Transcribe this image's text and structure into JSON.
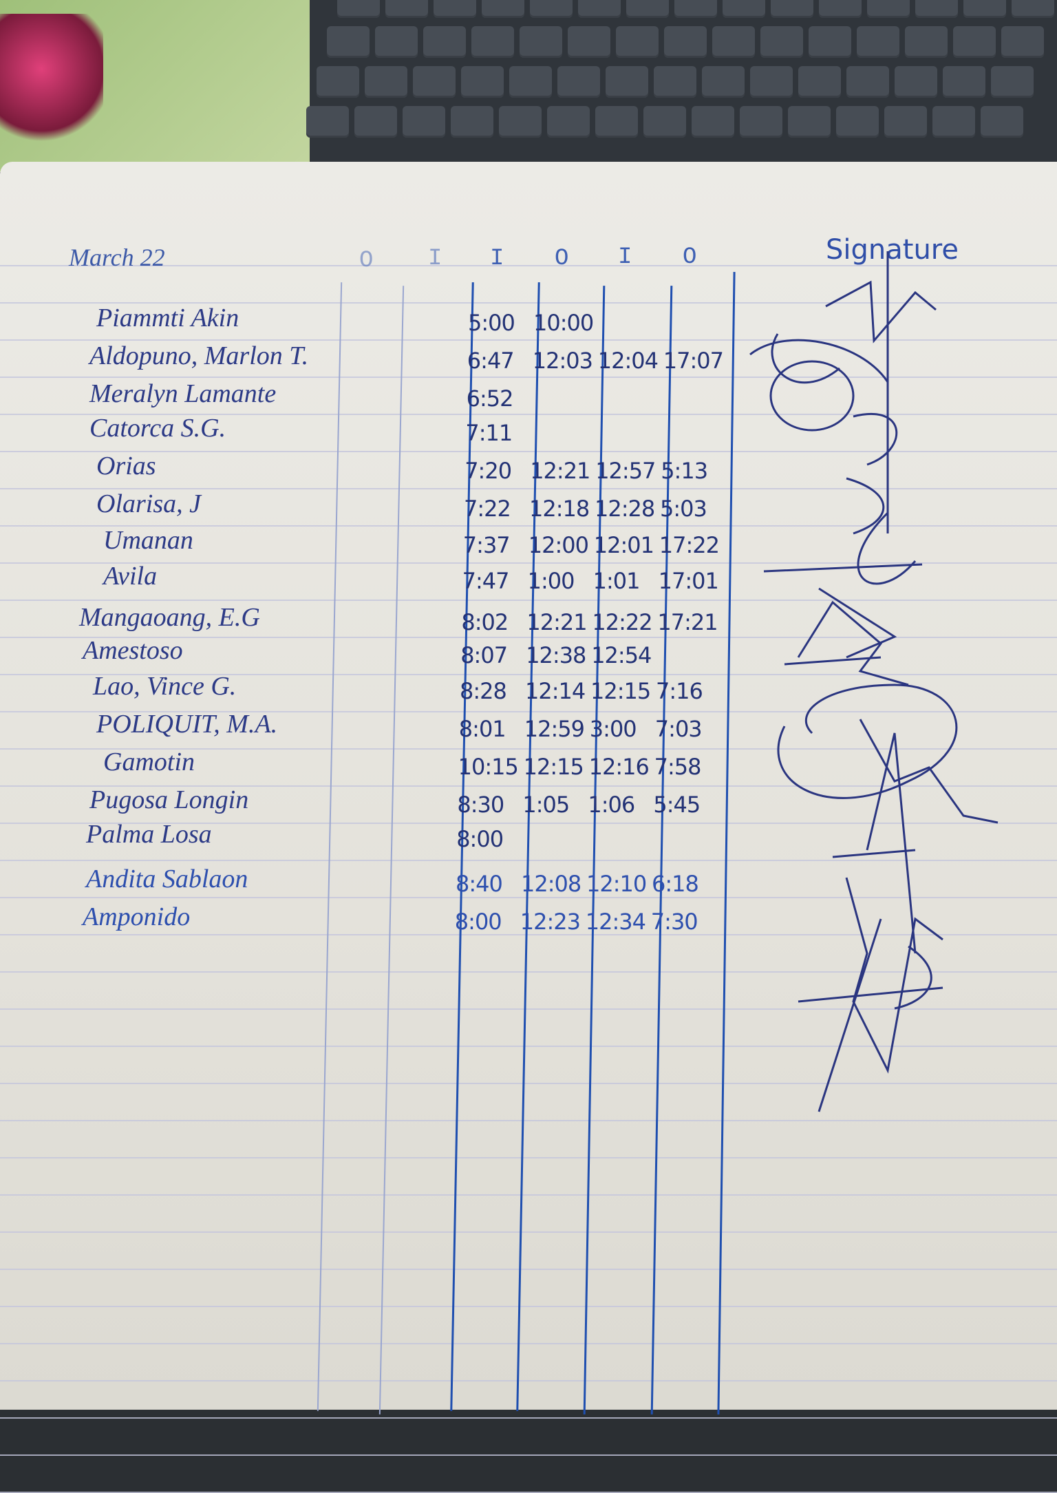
{
  "sheet": {
    "date": "March 22",
    "columns": [
      "O",
      "I",
      "I",
      "O",
      "I",
      "O"
    ],
    "signature_header": "Signature",
    "rows": [
      {
        "name": "Piammti Akin",
        "in_am": "5:00",
        "out_am": "10:00",
        "in_pm": "",
        "out_pm": ""
      },
      {
        "name": "Aldopuno, Marlon T.",
        "in_am": "6:47",
        "out_am": "12:03",
        "in_pm": "12:04",
        "out_pm": "17:07"
      },
      {
        "name": "Meralyn Lamante",
        "in_am": "6:52",
        "out_am": "",
        "in_pm": "",
        "out_pm": ""
      },
      {
        "name": "Catorca S.G.",
        "in_am": "7:11",
        "out_am": "",
        "in_pm": "",
        "out_pm": ""
      },
      {
        "name": "Orias",
        "in_am": "7:20",
        "out_am": "12:21",
        "in_pm": "12:57",
        "out_pm": "5:13"
      },
      {
        "name": "Olarisa, J",
        "in_am": "7:22",
        "out_am": "12:18",
        "in_pm": "12:28",
        "out_pm": "5:03"
      },
      {
        "name": "Umanan",
        "in_am": "7:37",
        "out_am": "12:00",
        "in_pm": "12:01",
        "out_pm": "17:22"
      },
      {
        "name": "Avila",
        "in_am": "7:47",
        "out_am": "1:00",
        "in_pm": "1:01",
        "out_pm": "17:01"
      },
      {
        "name": "Mangaoang, E.G",
        "in_am": "8:02",
        "out_am": "12:21",
        "in_pm": "12:22",
        "out_pm": "17:21"
      },
      {
        "name": "Amestoso",
        "in_am": "8:07",
        "out_am": "12:38",
        "in_pm": "12:54",
        "out_pm": ""
      },
      {
        "name": "Lao, Vince G.",
        "in_am": "8:28",
        "out_am": "12:14",
        "in_pm": "12:15",
        "out_pm": "7:16"
      },
      {
        "name": "POLIQUIT, M.A.",
        "in_am": "8:01",
        "out_am": "12:59",
        "in_pm": "3:00",
        "out_pm": "7:03"
      },
      {
        "name": "Gamotin",
        "in_am": "10:15",
        "out_am": "12:15",
        "in_pm": "12:16",
        "out_pm": "7:58"
      },
      {
        "name": "Pugosa Longin",
        "in_am": "8:30",
        "out_am": "1:05",
        "in_pm": "1:06",
        "out_pm": "5:45"
      },
      {
        "name": "Palma Losa",
        "in_am": "8:00",
        "out_am": "",
        "in_pm": "",
        "out_pm": ""
      },
      {
        "name": "Andita Sablaon",
        "in_am": "8:40",
        "out_am": "12:08",
        "in_pm": "12:10",
        "out_pm": "6:18"
      },
      {
        "name": "Amponido",
        "in_am": "8:00",
        "out_am": "12:23",
        "in_pm": "12:34",
        "out_pm": "7:30"
      }
    ]
  },
  "colors": {
    "ink": "#2c3a86",
    "column_line": "#1f4fb0",
    "paper": "#e8e7e1"
  }
}
